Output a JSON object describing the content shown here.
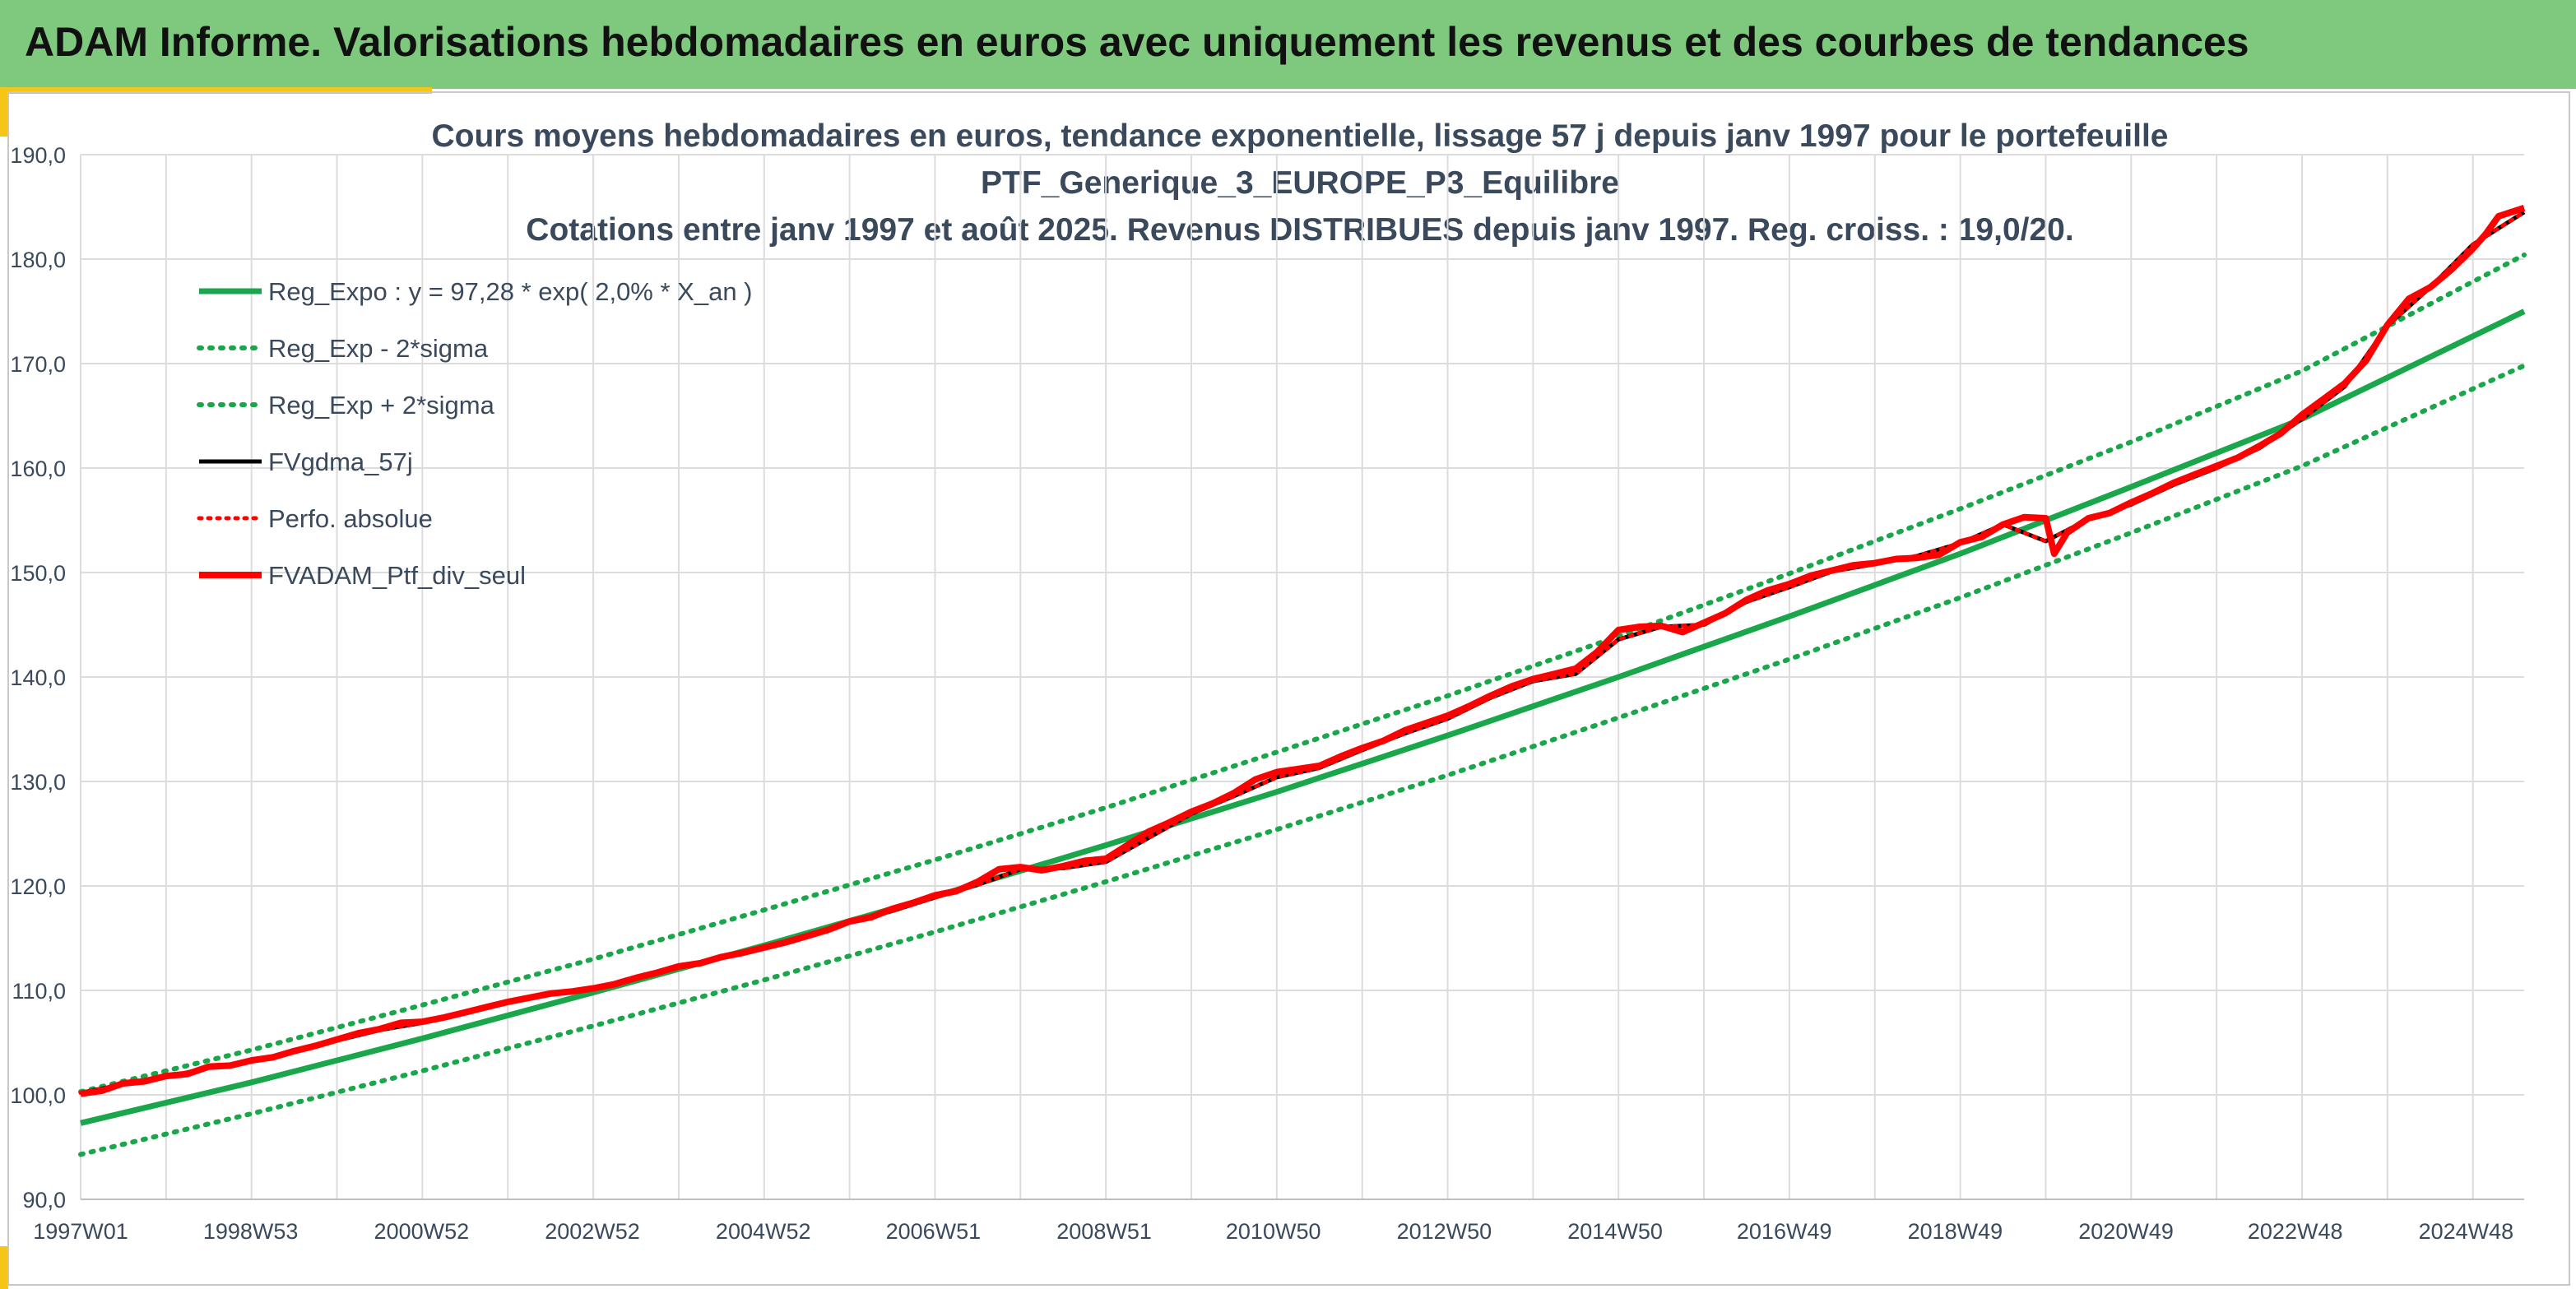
{
  "header": {
    "title": "ADAM Informe. Valorisations hebdomadaires en euros avec uniquement les revenus et des courbes de tendances"
  },
  "colors": {
    "header_bg": "#7fc97f",
    "accent_yellow": "#f5c518",
    "trend_green": "#1aa64a",
    "series_black": "#000000",
    "series_red": "#ff0000",
    "grid": "#dcdcdc",
    "text": "#3a4a5c"
  },
  "chart_data": {
    "type": "line",
    "title_lines": [
      "Cours moyens hebdomadaires en euros, tendance exponentielle, lissage 57 j depuis janv 1997 pour le portefeuille",
      "PTF_Generique_3_EUROPE_P3_Equilibre",
      "Cotations entre janv 1997 et août 2025. Revenus DISTRIBUES depuis janv 1997. Reg. croiss. : 19,0/20."
    ],
    "ylim": [
      90,
      190
    ],
    "yticks": [
      "90,0",
      "100,0",
      "110,0",
      "120,0",
      "130,0",
      "140,0",
      "150,0",
      "160,0",
      "170,0",
      "180,0",
      "190,0"
    ],
    "xlim": [
      1997.0,
      2025.6
    ],
    "xticks": [
      {
        "x": 1997.0,
        "label": "1997W01"
      },
      {
        "x": 1998.99,
        "label": "1998W53"
      },
      {
        "x": 2000.99,
        "label": "2000W52"
      },
      {
        "x": 2002.99,
        "label": "2002W52"
      },
      {
        "x": 2004.99,
        "label": "2004W52"
      },
      {
        "x": 2006.98,
        "label": "2006W51"
      },
      {
        "x": 2008.98,
        "label": "2008W51"
      },
      {
        "x": 2010.96,
        "label": "2010W50"
      },
      {
        "x": 2012.96,
        "label": "2012W50"
      },
      {
        "x": 2014.96,
        "label": "2014W50"
      },
      {
        "x": 2016.94,
        "label": "2016W49"
      },
      {
        "x": 2018.94,
        "label": "2018W49"
      },
      {
        "x": 2020.94,
        "label": "2020W49"
      },
      {
        "x": 2022.92,
        "label": "2022W48"
      },
      {
        "x": 2024.92,
        "label": "2024W48"
      }
    ],
    "grid": true,
    "legend_position": "top-left",
    "series": [
      {
        "name": "Reg_Expo : y = 97,28 * exp( 2,0% *  X_an )",
        "color": "#1aa64a",
        "style": "solid",
        "x": [
          1997.0,
          1999.0,
          2001.0,
          2003.0,
          2005.0,
          2007.0,
          2009.0,
          2011.0,
          2013.0,
          2015.0,
          2017.0,
          2019.0,
          2021.0,
          2023.0,
          2025.6
        ],
        "y": [
          97.3,
          101.2,
          105.4,
          109.8,
          114.3,
          119.0,
          123.9,
          129.0,
          134.4,
          140.0,
          145.8,
          151.8,
          158.2,
          164.7,
          175.0
        ]
      },
      {
        "name": "Reg_Exp - 2*sigma",
        "color": "#1aa64a",
        "style": "dotted",
        "x": [
          1997.0,
          1999.0,
          2001.0,
          2003.0,
          2005.0,
          2007.0,
          2009.0,
          2011.0,
          2013.0,
          2015.0,
          2017.0,
          2019.0,
          2021.0,
          2023.0,
          2025.6
        ],
        "y": [
          94.3,
          98.2,
          102.3,
          106.6,
          111.0,
          115.6,
          120.4,
          125.4,
          130.6,
          136.1,
          141.7,
          147.6,
          153.8,
          160.2,
          169.8
        ]
      },
      {
        "name": "Reg_Exp + 2*sigma",
        "color": "#1aa64a",
        "style": "dotted",
        "x": [
          1997.0,
          1999.0,
          2001.0,
          2003.0,
          2005.0,
          2007.0,
          2009.0,
          2011.0,
          2013.0,
          2015.0,
          2017.0,
          2019.0,
          2021.0,
          2023.0,
          2025.6
        ],
        "y": [
          100.3,
          104.3,
          108.6,
          113.0,
          117.7,
          122.5,
          127.5,
          132.8,
          138.2,
          143.9,
          149.9,
          156.1,
          162.5,
          169.3,
          180.4
        ]
      },
      {
        "name": "FVgdma_57j",
        "color": "#000000",
        "style": "solid",
        "x": [
          1997.0,
          1997.5,
          1998.0,
          1998.5,
          1999.0,
          1999.5,
          2000.0,
          2000.5,
          2001.0,
          2001.5,
          2002.0,
          2002.5,
          2003.0,
          2003.5,
          2004.0,
          2004.5,
          2005.0,
          2005.5,
          2006.0,
          2006.5,
          2007.0,
          2007.5,
          2008.0,
          2008.5,
          2009.0,
          2009.5,
          2010.0,
          2010.5,
          2011.0,
          2011.5,
          2012.0,
          2012.5,
          2013.0,
          2013.5,
          2014.0,
          2014.5,
          2015.0,
          2015.5,
          2016.0,
          2016.5,
          2017.0,
          2017.5,
          2018.0,
          2018.5,
          2019.0,
          2019.5,
          2020.0,
          2020.5,
          2021.0,
          2021.5,
          2022.0,
          2022.5,
          2023.0,
          2023.5,
          2024.0,
          2024.5,
          2025.0,
          2025.6
        ],
        "y": [
          100.2,
          101.0,
          101.7,
          102.6,
          103.2,
          104.1,
          105.2,
          106.2,
          106.9,
          107.8,
          108.8,
          109.6,
          110.1,
          111.1,
          112.2,
          113.1,
          114.0,
          115.1,
          116.5,
          117.6,
          118.9,
          120.1,
          121.6,
          121.7,
          122.3,
          124.6,
          126.9,
          128.6,
          130.4,
          131.3,
          133.0,
          134.6,
          136.0,
          138.0,
          139.6,
          140.3,
          143.6,
          144.8,
          145.0,
          147.2,
          148.6,
          150.1,
          150.8,
          151.6,
          152.8,
          154.6,
          153.0,
          155.1,
          156.5,
          158.4,
          160.0,
          161.9,
          164.7,
          167.8,
          173.6,
          177.3,
          181.4,
          184.5
        ]
      },
      {
        "name": "Perfo. absolue",
        "color": "#ff0000",
        "style": "dotted",
        "x": [
          1997.0,
          1997.5,
          1998.0,
          1998.5,
          1999.0,
          1999.5,
          2000.0,
          2000.5,
          2001.0,
          2001.5,
          2002.0,
          2002.5,
          2003.0,
          2003.5,
          2004.0,
          2004.5,
          2005.0,
          2005.5,
          2006.0,
          2006.5,
          2007.0,
          2007.5,
          2008.0,
          2008.5,
          2009.0,
          2009.5,
          2010.0,
          2010.5,
          2011.0,
          2011.5,
          2012.0,
          2012.5,
          2013.0,
          2013.5,
          2014.0,
          2014.5,
          2015.0,
          2015.5,
          2016.0,
          2016.5,
          2017.0,
          2017.5,
          2018.0,
          2018.5,
          2019.0,
          2019.5,
          2020.0,
          2020.5,
          2021.0,
          2021.5,
          2022.0,
          2022.5,
          2023.0,
          2023.5,
          2024.0,
          2024.5,
          2025.0,
          2025.6
        ],
        "y": [
          100.2,
          101.0,
          101.7,
          102.6,
          103.2,
          104.1,
          105.2,
          106.2,
          106.9,
          107.8,
          108.8,
          109.6,
          110.1,
          111.1,
          112.2,
          113.1,
          114.0,
          115.1,
          116.5,
          117.6,
          118.9,
          120.1,
          121.6,
          121.7,
          122.3,
          124.6,
          126.9,
          128.6,
          130.4,
          131.3,
          133.0,
          134.6,
          136.0,
          138.0,
          139.6,
          140.3,
          143.6,
          144.8,
          145.0,
          147.2,
          148.6,
          150.1,
          150.8,
          151.6,
          152.8,
          154.6,
          153.0,
          155.1,
          156.5,
          158.4,
          160.0,
          161.9,
          164.7,
          167.8,
          173.6,
          177.3,
          181.4,
          184.5
        ]
      },
      {
        "name": "FVADAM_Ptf_div_seul",
        "color": "#ff0000",
        "style": "solid",
        "x": [
          1997.0,
          1997.25,
          1997.5,
          1997.75,
          1998.0,
          1998.25,
          1998.5,
          1998.75,
          1999.0,
          1999.25,
          1999.5,
          1999.75,
          2000.0,
          2000.25,
          2000.5,
          2000.75,
          2001.0,
          2001.25,
          2001.5,
          2001.75,
          2002.0,
          2002.25,
          2002.5,
          2002.75,
          2003.0,
          2003.25,
          2003.5,
          2003.75,
          2004.0,
          2004.25,
          2004.5,
          2004.75,
          2005.0,
          2005.25,
          2005.5,
          2005.75,
          2006.0,
          2006.25,
          2006.5,
          2006.75,
          2007.0,
          2007.25,
          2007.5,
          2007.75,
          2008.0,
          2008.25,
          2008.5,
          2008.75,
          2009.0,
          2009.25,
          2009.5,
          2009.75,
          2010.0,
          2010.25,
          2010.5,
          2010.75,
          2011.0,
          2011.25,
          2011.5,
          2011.75,
          2012.0,
          2012.25,
          2012.5,
          2012.75,
          2013.0,
          2013.25,
          2013.5,
          2013.75,
          2014.0,
          2014.25,
          2014.5,
          2014.75,
          2015.0,
          2015.25,
          2015.5,
          2015.75,
          2016.0,
          2016.25,
          2016.5,
          2016.75,
          2017.0,
          2017.25,
          2017.5,
          2017.75,
          2018.0,
          2018.25,
          2018.5,
          2018.75,
          2019.0,
          2019.25,
          2019.5,
          2019.75,
          2020.0,
          2020.1,
          2020.25,
          2020.5,
          2020.75,
          2021.0,
          2021.25,
          2021.5,
          2021.75,
          2022.0,
          2022.25,
          2022.5,
          2022.75,
          2023.0,
          2023.25,
          2023.5,
          2023.75,
          2024.0,
          2024.25,
          2024.5,
          2024.75,
          2025.0,
          2025.15,
          2025.3,
          2025.6
        ],
        "y": [
          100.1,
          100.4,
          101.1,
          101.3,
          101.8,
          102.0,
          102.7,
          102.8,
          103.3,
          103.6,
          104.2,
          104.7,
          105.3,
          105.9,
          106.3,
          106.9,
          107.0,
          107.4,
          107.9,
          108.4,
          108.9,
          109.3,
          109.7,
          109.9,
          110.2,
          110.6,
          111.2,
          111.7,
          112.3,
          112.6,
          113.2,
          113.6,
          114.1,
          114.6,
          115.2,
          115.8,
          116.6,
          117.0,
          117.8,
          118.4,
          119.1,
          119.5,
          120.4,
          121.6,
          121.8,
          121.5,
          121.9,
          122.4,
          122.6,
          123.9,
          125.2,
          126.1,
          127.1,
          127.9,
          128.9,
          130.2,
          130.9,
          131.2,
          131.5,
          132.4,
          133.2,
          133.9,
          134.9,
          135.6,
          136.3,
          137.2,
          138.2,
          139.1,
          139.8,
          140.3,
          140.8,
          142.4,
          144.5,
          144.8,
          144.9,
          144.3,
          145.2,
          146.1,
          147.4,
          148.3,
          148.9,
          149.7,
          150.2,
          150.7,
          150.9,
          151.3,
          151.4,
          151.7,
          152.9,
          153.4,
          154.6,
          155.3,
          155.2,
          151.8,
          153.8,
          155.2,
          155.7,
          156.7,
          157.6,
          158.6,
          159.4,
          160.2,
          161.0,
          162.1,
          163.3,
          165.1,
          166.6,
          168.1,
          170.3,
          173.7,
          176.2,
          177.3,
          179.0,
          181.0,
          182.4,
          184.1,
          184.9
        ]
      }
    ]
  }
}
